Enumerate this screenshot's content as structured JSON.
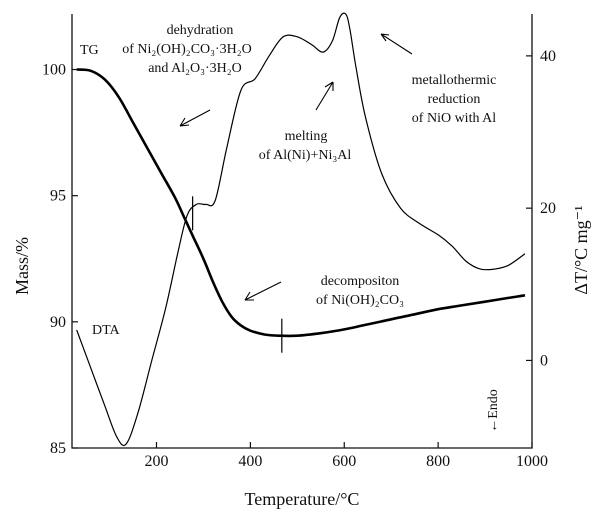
{
  "chart_data": {
    "type": "line",
    "xlabel": "Temperature/°C",
    "ylabel_left": "Mass/%",
    "ylabel_right": "ΔT/°C mg⁻¹",
    "xlim": [
      20,
      1000
    ],
    "ylim_left": [
      85,
      102.2
    ],
    "ylim_right": [
      -11.5,
      45.5
    ],
    "xticks": [
      200,
      400,
      600,
      800,
      1000
    ],
    "yticks_left": [
      85,
      90,
      95,
      100
    ],
    "yticks_right": [
      0,
      20,
      40
    ],
    "grid": false,
    "series": [
      {
        "name": "TG",
        "axis": "left",
        "x": [
          30,
          60,
          90,
          120,
          150,
          180,
          210,
          240,
          260,
          280,
          300,
          320,
          340,
          360,
          380,
          400,
          430,
          460,
          500,
          550,
          600,
          650,
          700,
          750,
          800,
          850,
          900,
          950,
          985
        ],
        "y": [
          100.0,
          99.95,
          99.6,
          98.9,
          97.9,
          96.9,
          95.9,
          94.9,
          94.1,
          93.3,
          92.5,
          91.6,
          90.8,
          90.2,
          89.85,
          89.65,
          89.5,
          89.45,
          89.45,
          89.55,
          89.7,
          89.9,
          90.1,
          90.3,
          90.5,
          90.65,
          90.8,
          90.95,
          91.05
        ]
      },
      {
        "name": "DTA",
        "axis": "right",
        "x": [
          30,
          60,
          90,
          115,
          135,
          160,
          190,
          220,
          245,
          265,
          285,
          305,
          325,
          350,
          380,
          410,
          440,
          470,
          500,
          530,
          555,
          575,
          590,
          603,
          612,
          625,
          645,
          680,
          720,
          760,
          800,
          830,
          860,
          890,
          920,
          950,
          985
        ],
        "y": [
          4,
          -1,
          -6,
          -10,
          -11,
          -7,
          0,
          7,
          14,
          19,
          20.5,
          20.5,
          21,
          28,
          35.5,
          37,
          40,
          42.5,
          42.5,
          41.5,
          40.5,
          42,
          45,
          45.5,
          43.5,
          38.5,
          32,
          24.5,
          20,
          18,
          16.5,
          15,
          13,
          12,
          12,
          12.5,
          14
        ]
      }
    ],
    "annotations": {
      "tg_label": "TG",
      "dta_label": "DTA",
      "dehydration_title": "dehydration",
      "dehydration_line2": "of Ni₂(OH)₂CO₃·3H₂O",
      "dehydration_line3": "and Al₂O₃·3H₂O",
      "melting_line1": "melting",
      "melting_line2": "of Al(Ni)+Ni₃Al",
      "reduction_line1": "metallothermic",
      "reduction_line2": "reduction",
      "reduction_line3": "of NiO with Al",
      "decomposition_line1": "decompositon",
      "decomposition_line2": "of Ni(OH)₂CO₃",
      "endo": "←Endo"
    }
  }
}
